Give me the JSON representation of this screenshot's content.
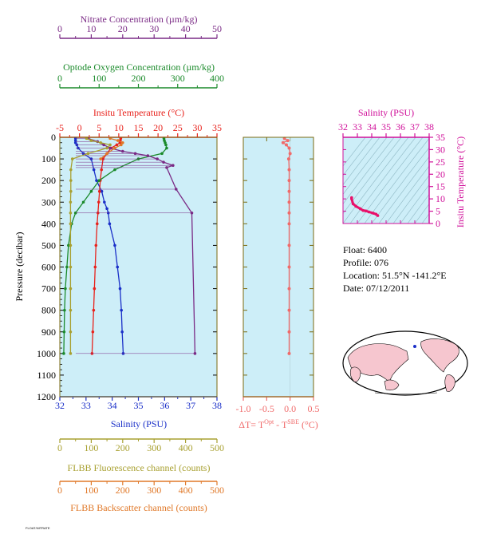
{
  "axes": {
    "nitrate": {
      "label": "Nitrate Concentration (µm/kg)",
      "ticks": [
        "0",
        "10",
        "20",
        "30",
        "40",
        "50"
      ],
      "min": 0,
      "max": 50,
      "color": "#7a2a85"
    },
    "oxygen": {
      "label": "Optode Oxygen Concentration (µm/kg)",
      "ticks": [
        "0",
        "100",
        "200",
        "300",
        "400"
      ],
      "min": 0,
      "max": 400,
      "color": "#1a8a2a"
    },
    "temperature": {
      "label": "Insitu Temperature (°C)",
      "ticks": [
        "-5",
        "0",
        "5",
        "10",
        "15",
        "20",
        "25",
        "30",
        "35"
      ],
      "min": -5,
      "max": 35,
      "color": "#e8221c"
    },
    "pressure": {
      "label": "Pressure (decibar)",
      "ticks": [
        "0",
        "100",
        "200",
        "300",
        "400",
        "500",
        "600",
        "700",
        "800",
        "900",
        "1000",
        "1100",
        "1200"
      ],
      "min": 0,
      "max": 1200,
      "color": "#000000"
    },
    "salinity": {
      "label": "Salinity (PSU)",
      "ticks": [
        "32",
        "33",
        "34",
        "35",
        "36",
        "37",
        "38"
      ],
      "min": 32,
      "max": 38,
      "color": "#1a2fc8"
    },
    "fluorescence": {
      "label": "FLBB Fluorescence channel (counts)",
      "ticks": [
        "0",
        "100",
        "200",
        "300",
        "400",
        "500"
      ],
      "min": 0,
      "max": 500,
      "color": "#a8a030"
    },
    "backscatter": {
      "label": "FLBB Backscatter channel (counts)",
      "ticks": [
        "0",
        "100",
        "200",
        "300",
        "400",
        "500"
      ],
      "min": 0,
      "max": 500,
      "color": "#e07828"
    },
    "delta_t": {
      "label_prefix": "ΔT= T",
      "label_sup1": "Opt",
      "label_mid": " - T",
      "label_sup2": "SBE",
      "label_suffix": " (°C)",
      "ticks": [
        "-1.0",
        "-0.5",
        "0.0",
        "0.5"
      ],
      "min": -1.0,
      "max": 0.5,
      "color": "#f06a6a"
    },
    "ts_salinity": {
      "label": "Salinity (PSU)",
      "ticks": [
        "32",
        "33",
        "34",
        "35",
        "36",
        "37",
        "38"
      ],
      "min": 32,
      "max": 38,
      "color": "#d0109a"
    },
    "ts_temperature": {
      "label": "Insitu Temperature (°C)",
      "ticks": [
        "0",
        "5",
        "10",
        "15",
        "20",
        "25",
        "30",
        "35"
      ],
      "min": 0,
      "max": 35,
      "color": "#d0109a"
    }
  },
  "info": {
    "float": "Float:  6400",
    "profile": "Profile:  076",
    "location": "Location:  51.5°N  -141.2°E",
    "date": "Date:  07/12/2011"
  },
  "credit": "FLOAT/NITRATE",
  "colors": {
    "panel_bg": "#cdeef8",
    "frame": "#7a6a10"
  },
  "chart_data": [
    {
      "type": "scatter",
      "title": "",
      "xlabel": "Salinity (PSU)",
      "ylabel": "Pressure (decibar)",
      "ylim": [
        1200,
        0
      ],
      "series": [
        {
          "name": "Salinity (PSU)",
          "color": "#1a2fc8",
          "axis": "salinity",
          "p": [
            5,
            15,
            25,
            35,
            50,
            75,
            100,
            150,
            200,
            250,
            300,
            330,
            350,
            400,
            500,
            600,
            700,
            800,
            900,
            1000
          ],
          "values": [
            32.6,
            32.6,
            32.6,
            32.65,
            32.7,
            32.9,
            33.2,
            33.3,
            33.4,
            33.6,
            33.7,
            33.8,
            33.85,
            33.9,
            34.1,
            34.2,
            34.3,
            34.35,
            34.38,
            34.42
          ]
        },
        {
          "name": "Insitu Temperature (°C)",
          "color": "#e8221c",
          "axis": "temperature",
          "p": [
            5,
            15,
            25,
            35,
            50,
            75,
            100,
            150,
            200,
            250,
            300,
            350,
            400,
            500,
            600,
            700,
            800,
            900,
            1000
          ],
          "values": [
            10.5,
            10.4,
            10.3,
            9.5,
            8.0,
            7.0,
            6.0,
            5.6,
            5.3,
            5.1,
            4.9,
            4.7,
            4.5,
            4.2,
            4.0,
            3.8,
            3.6,
            3.4,
            3.2
          ]
        },
        {
          "name": "Optode Oxygen Concentration (µm/kg)",
          "color": "#1a8a2a",
          "axis": "oxygen",
          "p": [
            5,
            15,
            25,
            35,
            50,
            75,
            100,
            150,
            200,
            250,
            300,
            350,
            400,
            500,
            600,
            700,
            800,
            900,
            1000
          ],
          "values": [
            265,
            266,
            268,
            270,
            272,
            260,
            200,
            140,
            100,
            80,
            60,
            40,
            30,
            22,
            18,
            14,
            12,
            11,
            10
          ]
        },
        {
          "name": "Nitrate Concentration (µm/kg)",
          "color": "#7a2a85",
          "axis": "nitrate",
          "p": [
            5,
            20,
            35,
            50,
            65,
            75,
            85,
            100,
            115,
            130,
            140,
            240,
            350,
            1000
          ],
          "values": [
            9,
            12,
            14,
            16,
            20,
            24,
            28,
            31,
            33,
            36,
            34,
            37,
            42,
            43
          ]
        },
        {
          "name": "FLBB Fluorescence channel (counts)",
          "color": "#a8a030",
          "axis": "fluorescence",
          "p": [
            5,
            15,
            25,
            35,
            50,
            75,
            100,
            150,
            200,
            250,
            300,
            350,
            400,
            500,
            600,
            700,
            800,
            900,
            1000
          ],
          "values": [
            85,
            100,
            130,
            160,
            150,
            90,
            40,
            35,
            35,
            35,
            34,
            34,
            34,
            34,
            34,
            34,
            34,
            34,
            34
          ]
        },
        {
          "name": "FLBB Backscatter channel (counts)",
          "color": "#e07828",
          "axis": "backscatter",
          "p": [
            5,
            15,
            25,
            35,
            50,
            75,
            100
          ],
          "values": [
            160,
            185,
            200,
            195,
            175,
            150,
            130
          ]
        }
      ]
    },
    {
      "type": "scatter",
      "title": "",
      "xlabel": "ΔT= TOpt - TSBE (°C)",
      "xlim": [
        -1.0,
        0.5
      ],
      "ylim": [
        1200,
        0
      ],
      "series": [
        {
          "name": "ΔT",
          "color": "#f06a6a",
          "p": [
            5,
            15,
            25,
            35,
            50,
            75,
            100,
            150,
            200,
            250,
            300,
            350,
            400,
            500,
            600,
            700,
            800,
            900,
            1000
          ],
          "values": [
            -0.12,
            -0.05,
            -0.15,
            -0.08,
            -0.02,
            0.0,
            -0.03,
            -0.02,
            -0.02,
            -0.02,
            -0.02,
            -0.02,
            -0.02,
            -0.02,
            -0.02,
            -0.02,
            -0.02,
            -0.02,
            -0.02
          ]
        }
      ]
    },
    {
      "type": "line",
      "title": "",
      "xlabel": "Salinity (PSU)",
      "ylabel": "Insitu Temperature (°C)",
      "xlim": [
        32,
        38
      ],
      "ylim": [
        0,
        35
      ],
      "series": [
        {
          "name": "T-S",
          "color": "#e8106a",
          "x": [
            32.6,
            32.6,
            32.7,
            32.9,
            33.2,
            33.4,
            33.6,
            33.8,
            34.1,
            34.3,
            34.42
          ],
          "y": [
            10.5,
            10.0,
            8.0,
            7.0,
            6.0,
            5.3,
            5.1,
            4.7,
            4.2,
            3.8,
            3.2
          ]
        }
      ]
    }
  ]
}
